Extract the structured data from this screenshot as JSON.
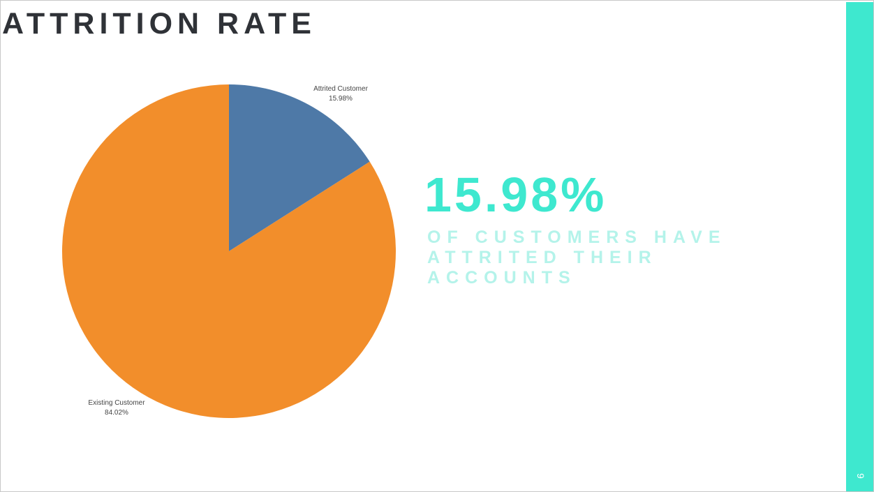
{
  "slide": {
    "title": "ATTRITION RATE",
    "big_stat": "15.98%",
    "caption": "OF CUSTOMERS HAVE ATTRITED THEIR ACCOUNTS",
    "page_number": "9"
  },
  "colors": {
    "accent": "#3ee8cf",
    "caption": "#b4f3ea",
    "title": "#2f3237",
    "attrited": "#4e79a7",
    "existing": "#f28e2b"
  },
  "chart_data": {
    "type": "pie",
    "title": "",
    "slices": [
      {
        "label": "Attrited Customer",
        "value": 15.98,
        "value_label": "15.98%",
        "color": "#4e79a7"
      },
      {
        "label": "Existing Customer",
        "value": 84.02,
        "value_label": "84.02%",
        "color": "#f28e2b"
      }
    ],
    "start_angle": "12 o'clock",
    "direction": "clockwise",
    "legend": "none",
    "labels": "outside"
  }
}
